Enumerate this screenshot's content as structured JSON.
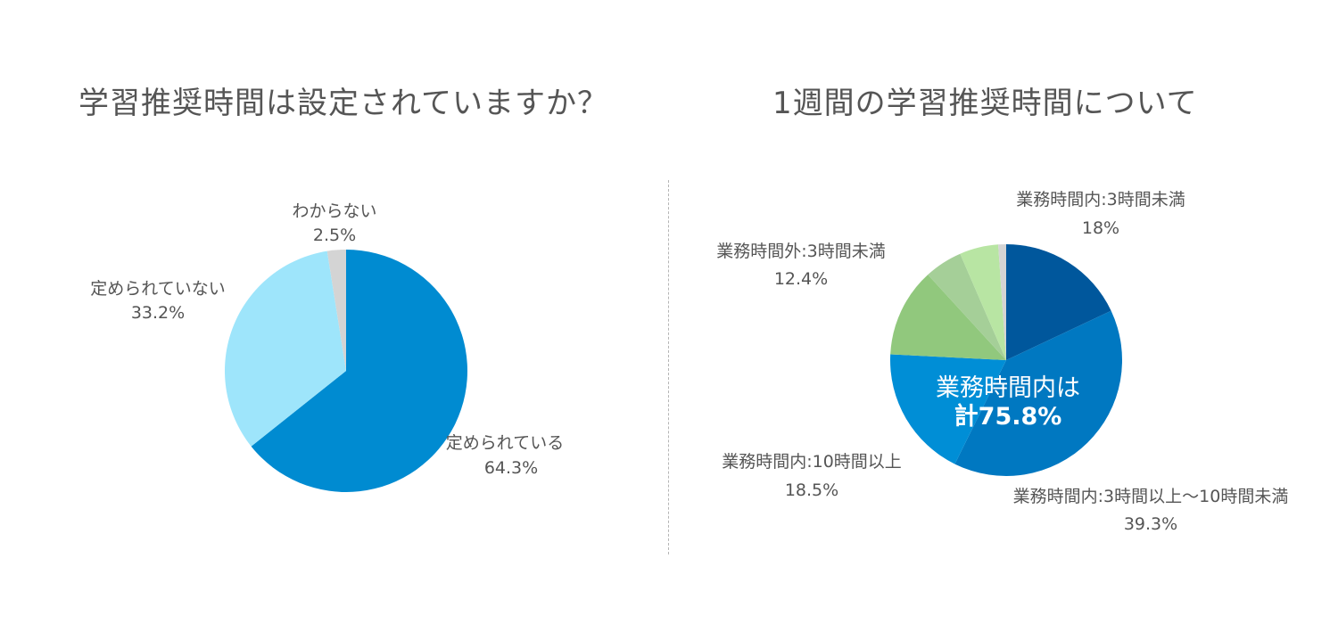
{
  "chart_data": [
    {
      "type": "pie",
      "title": "学習推奨時間は設定されていますか？",
      "slices": [
        {
          "label": "定められている",
          "value_label": "64.3%",
          "value": 64.3,
          "color": "#008bd1"
        },
        {
          "label": "定められていない",
          "value_label": "33.2%",
          "value": 33.2,
          "color": "#9ee5fb"
        },
        {
          "label": "わからない",
          "value_label": "2.5%",
          "value": 2.5,
          "color": "#d4d4d4"
        }
      ]
    },
    {
      "type": "pie",
      "title": "1週間の学習推奨時間について",
      "center_line1": "業務時間内は",
      "center_line2": "計75.8%",
      "slices": [
        {
          "label": "業務時間内:3時間未満",
          "value_label": "18%",
          "value": 18.0,
          "color": "#00579c"
        },
        {
          "label": "業務時間内:3時間以上〜10時間未満",
          "value_label": "39.3%",
          "value": 39.3,
          "color": "#0078c1"
        },
        {
          "label": "業務時間内:10時間以上",
          "value_label": "18.5%",
          "value": 18.5,
          "color": "#008ed6"
        },
        {
          "label": "業務時間外:3時間未満",
          "value_label": "12.4%",
          "value": 12.4,
          "color": "#91c87d"
        },
        {
          "label": "",
          "value_label": "",
          "value": 5.3,
          "color": "#a5cf98"
        },
        {
          "label": "",
          "value_label": "",
          "value": 5.4,
          "color": "#b8e5a3"
        },
        {
          "label": "",
          "value_label": "",
          "value": 1.1,
          "color": "#d4d4d4"
        }
      ]
    }
  ]
}
